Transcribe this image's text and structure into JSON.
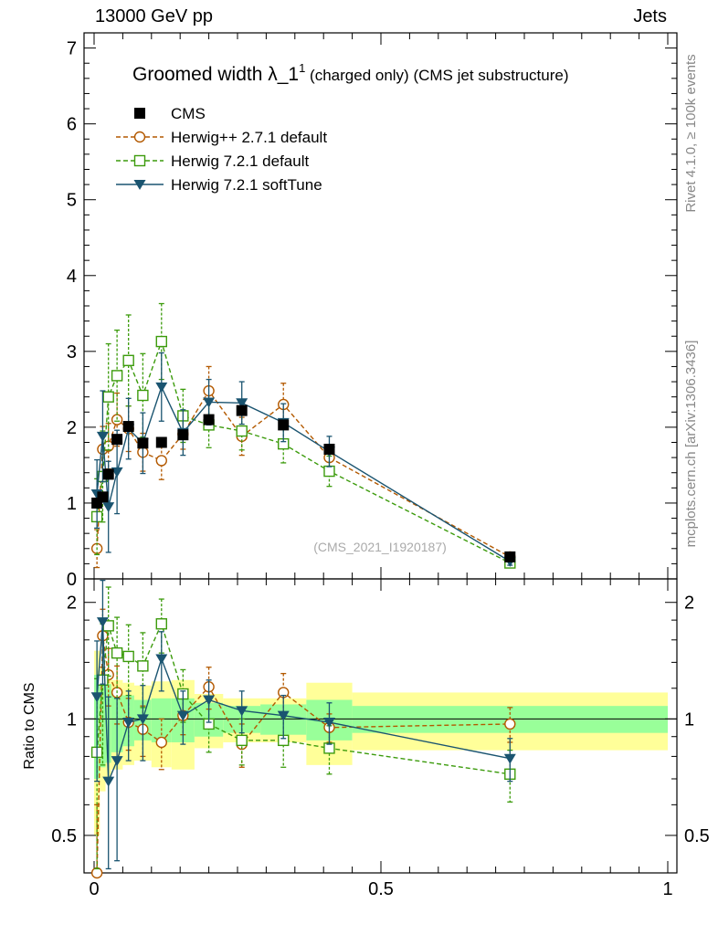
{
  "header": {
    "left": "13000 GeV pp",
    "right": "Jets"
  },
  "side_labels": {
    "rivet": "Rivet 4.1.0, ≥ 100k events",
    "mcplots": "mcplots.cern.ch [arXiv:1306.3436]"
  },
  "colors": {
    "cms": "#000000",
    "herwigpp": "#b35900",
    "herwig721": "#3c9b0c",
    "softtune": "#1a5470",
    "band_stat": "#99ff99",
    "band_tot": "#ffff99"
  },
  "chart_data": [
    {
      "type": "scatter",
      "panel": "main",
      "title": "Groomed width",
      "title_symbol": "λ_1",
      "title_superscript": "1",
      "title_suffix": "(charged only) (CMS jet substructure)",
      "watermark": "(CMS_2021_I1920187)",
      "xlim": [
        0,
        1
      ],
      "ylim": [
        0,
        7.2
      ],
      "yticks": [
        "0",
        "1",
        "2",
        "3",
        "4",
        "5",
        "6",
        "7"
      ],
      "legend": [
        "CMS",
        "Herwig++ 2.7.1 default",
        "Herwig 7.2.1 default",
        "Herwig 7.2.1 softTune"
      ],
      "bin_edges": [
        0,
        0.01,
        0.02,
        0.03,
        0.05,
        0.07,
        0.1,
        0.135,
        0.175,
        0.225,
        0.29,
        0.37,
        0.45,
        1.0
      ],
      "series": [
        {
          "name": "CMS",
          "marker": "square",
          "x": [
            0.005,
            0.015,
            0.025,
            0.04,
            0.06,
            0.085,
            0.1175,
            0.155,
            0.2,
            0.2575,
            0.33,
            0.41,
            0.725
          ],
          "values": [
            1.0,
            1.08,
            1.38,
            1.84,
            2.01,
            1.79,
            1.8,
            1.9,
            2.1,
            2.22,
            2.03,
            1.71,
            0.29
          ]
        },
        {
          "name": "Herwig++ 2.7.1 default",
          "marker": "circle-open",
          "x": [
            0.005,
            0.015,
            0.025,
            0.04,
            0.06,
            0.085,
            0.1175,
            0.155,
            0.2,
            0.2575,
            0.33,
            0.41,
            0.725
          ],
          "values": [
            0.4,
            1.71,
            1.75,
            2.1,
            1.98,
            1.67,
            1.56,
            1.91,
            2.48,
            1.88,
            2.3,
            1.6,
            0.29
          ],
          "errors": [
            0.25,
            0.3,
            0.3,
            0.35,
            0.3,
            0.25,
            0.25,
            0.2,
            0.32,
            0.25,
            0.28,
            0.15,
            0.05
          ]
        },
        {
          "name": "Herwig 7.2.1 default",
          "marker": "square-open",
          "x": [
            0.005,
            0.015,
            0.025,
            0.04,
            0.06,
            0.085,
            0.1175,
            0.155,
            0.2,
            0.2575,
            0.33,
            0.41,
            0.725
          ],
          "values": [
            0.82,
            1.35,
            2.4,
            2.68,
            2.88,
            2.42,
            3.13,
            2.15,
            2.03,
            1.95,
            1.78,
            1.42,
            0.21
          ],
          "errors": [
            0.5,
            0.6,
            0.7,
            0.6,
            0.6,
            0.55,
            0.5,
            0.35,
            0.3,
            0.25,
            0.25,
            0.2,
            0.05
          ]
        },
        {
          "name": "Herwig 7.2.1 softTune",
          "marker": "triangle-down",
          "x": [
            0.005,
            0.015,
            0.025,
            0.04,
            0.06,
            0.085,
            0.1175,
            0.155,
            0.2,
            0.2575,
            0.33,
            0.41,
            0.725
          ],
          "values": [
            1.12,
            1.88,
            0.95,
            1.41,
            1.98,
            1.79,
            2.53,
            1.93,
            2.33,
            2.32,
            2.06,
            1.68,
            0.23
          ],
          "errors": [
            0.45,
            0.6,
            0.6,
            0.55,
            0.4,
            0.4,
            0.45,
            0.3,
            0.3,
            0.28,
            0.25,
            0.2,
            0.05
          ]
        }
      ]
    },
    {
      "type": "scatter",
      "panel": "ratio",
      "ylabel": "Ratio to CMS",
      "xlim": [
        0,
        1
      ],
      "ylim": [
        0.4,
        2.3
      ],
      "ylog": true,
      "xticks": [
        "0",
        "0.5",
        "1"
      ],
      "yticks": [
        "0.5",
        "1",
        "2"
      ],
      "band_stat_half": [
        0.3,
        0.25,
        0.23,
        0.18,
        0.15,
        0.12,
        0.13,
        0.13,
        0.1,
        0.08,
        0.09,
        0.12,
        0.08
      ],
      "band_tot_half": [
        0.5,
        0.35,
        0.3,
        0.26,
        0.24,
        0.22,
        0.25,
        0.26,
        0.16,
        0.13,
        0.13,
        0.24,
        0.17
      ],
      "series": [
        {
          "name": "Herwig++ 2.7.1 default",
          "values": [
            0.4,
            1.64,
            1.3,
            1.17,
            0.98,
            0.94,
            0.87,
            1.02,
            1.21,
            0.86,
            1.17,
            0.95,
            0.97
          ],
          "errors": [
            0.2,
            0.28,
            0.22,
            0.2,
            0.15,
            0.14,
            0.13,
            0.11,
            0.15,
            0.11,
            0.14,
            0.08,
            0.1
          ]
        },
        {
          "name": "Herwig 7.2.1 default",
          "values": [
            0.82,
            1.26,
            1.74,
            1.48,
            1.45,
            1.37,
            1.76,
            1.16,
            0.97,
            0.88,
            0.88,
            0.84,
            0.72
          ],
          "errors": [
            0.45,
            0.5,
            0.45,
            0.35,
            0.3,
            0.3,
            0.28,
            0.18,
            0.15,
            0.12,
            0.13,
            0.12,
            0.11
          ]
        },
        {
          "name": "Herwig 7.2.1 softTune",
          "values": [
            1.14,
            1.78,
            0.69,
            0.78,
            0.98,
            1.0,
            1.43,
            1.02,
            1.12,
            1.05,
            1.02,
            0.98,
            0.79
          ],
          "errors": [
            0.45,
            0.55,
            0.45,
            0.35,
            0.2,
            0.22,
            0.25,
            0.16,
            0.14,
            0.13,
            0.13,
            0.12,
            0.1
          ]
        }
      ]
    }
  ]
}
